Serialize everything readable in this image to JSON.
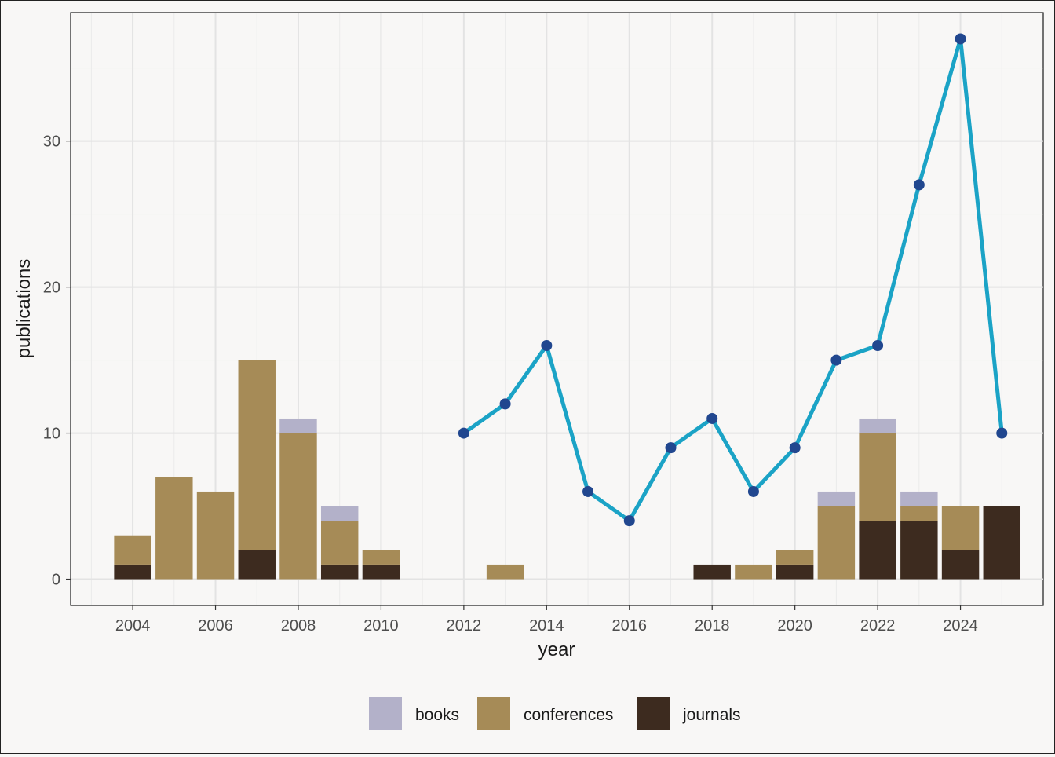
{
  "chart_data": {
    "type": "bar",
    "stacked": true,
    "xlabel": "year",
    "ylabel": "publications",
    "x_ticks": [
      2004,
      2006,
      2008,
      2010,
      2012,
      2014,
      2016,
      2018,
      2020,
      2022,
      2024
    ],
    "y_ticks": [
      0,
      10,
      20,
      30
    ],
    "xlim": [
      2002.5,
      2026
    ],
    "ylim": [
      -1.8,
      38.8
    ],
    "grid": true,
    "legend_position": "bottom",
    "categories": [
      2004,
      2005,
      2006,
      2007,
      2008,
      2009,
      2010,
      2011,
      2012,
      2013,
      2014,
      2015,
      2016,
      2017,
      2018,
      2019,
      2020,
      2021,
      2022,
      2023,
      2024,
      2025
    ],
    "series": [
      {
        "name": "journals",
        "color": "#3d2b1f",
        "values": [
          1,
          0,
          0,
          2,
          0,
          1,
          1,
          0,
          0,
          0,
          0,
          0,
          0,
          0,
          1,
          0,
          1,
          0,
          4,
          4,
          2,
          5
        ]
      },
      {
        "name": "conferences",
        "color": "#a68b57",
        "values": [
          2,
          7,
          6,
          13,
          10,
          3,
          1,
          0,
          0,
          1,
          0,
          0,
          0,
          0,
          0,
          1,
          1,
          5,
          6,
          1,
          3,
          0
        ]
      },
      {
        "name": "books",
        "color": "#b3b1c9",
        "values": [
          0,
          0,
          0,
          0,
          1,
          1,
          0,
          0,
          0,
          0,
          0,
          0,
          0,
          0,
          0,
          0,
          0,
          1,
          1,
          1,
          0,
          0
        ]
      }
    ],
    "line": {
      "color": "#1ba3c6",
      "point_color": "#21478f",
      "x": [
        2012,
        2013,
        2014,
        2015,
        2016,
        2017,
        2018,
        2019,
        2020,
        2021,
        2022,
        2023,
        2024,
        2025
      ],
      "y": [
        10,
        12,
        16,
        6,
        4,
        9,
        11,
        6,
        9,
        15,
        16,
        27,
        37,
        10
      ]
    },
    "legend": [
      {
        "label": "books",
        "color": "#b3b1c9"
      },
      {
        "label": "conferences",
        "color": "#a68b57"
      },
      {
        "label": "journals",
        "color": "#3d2b1f"
      }
    ]
  }
}
